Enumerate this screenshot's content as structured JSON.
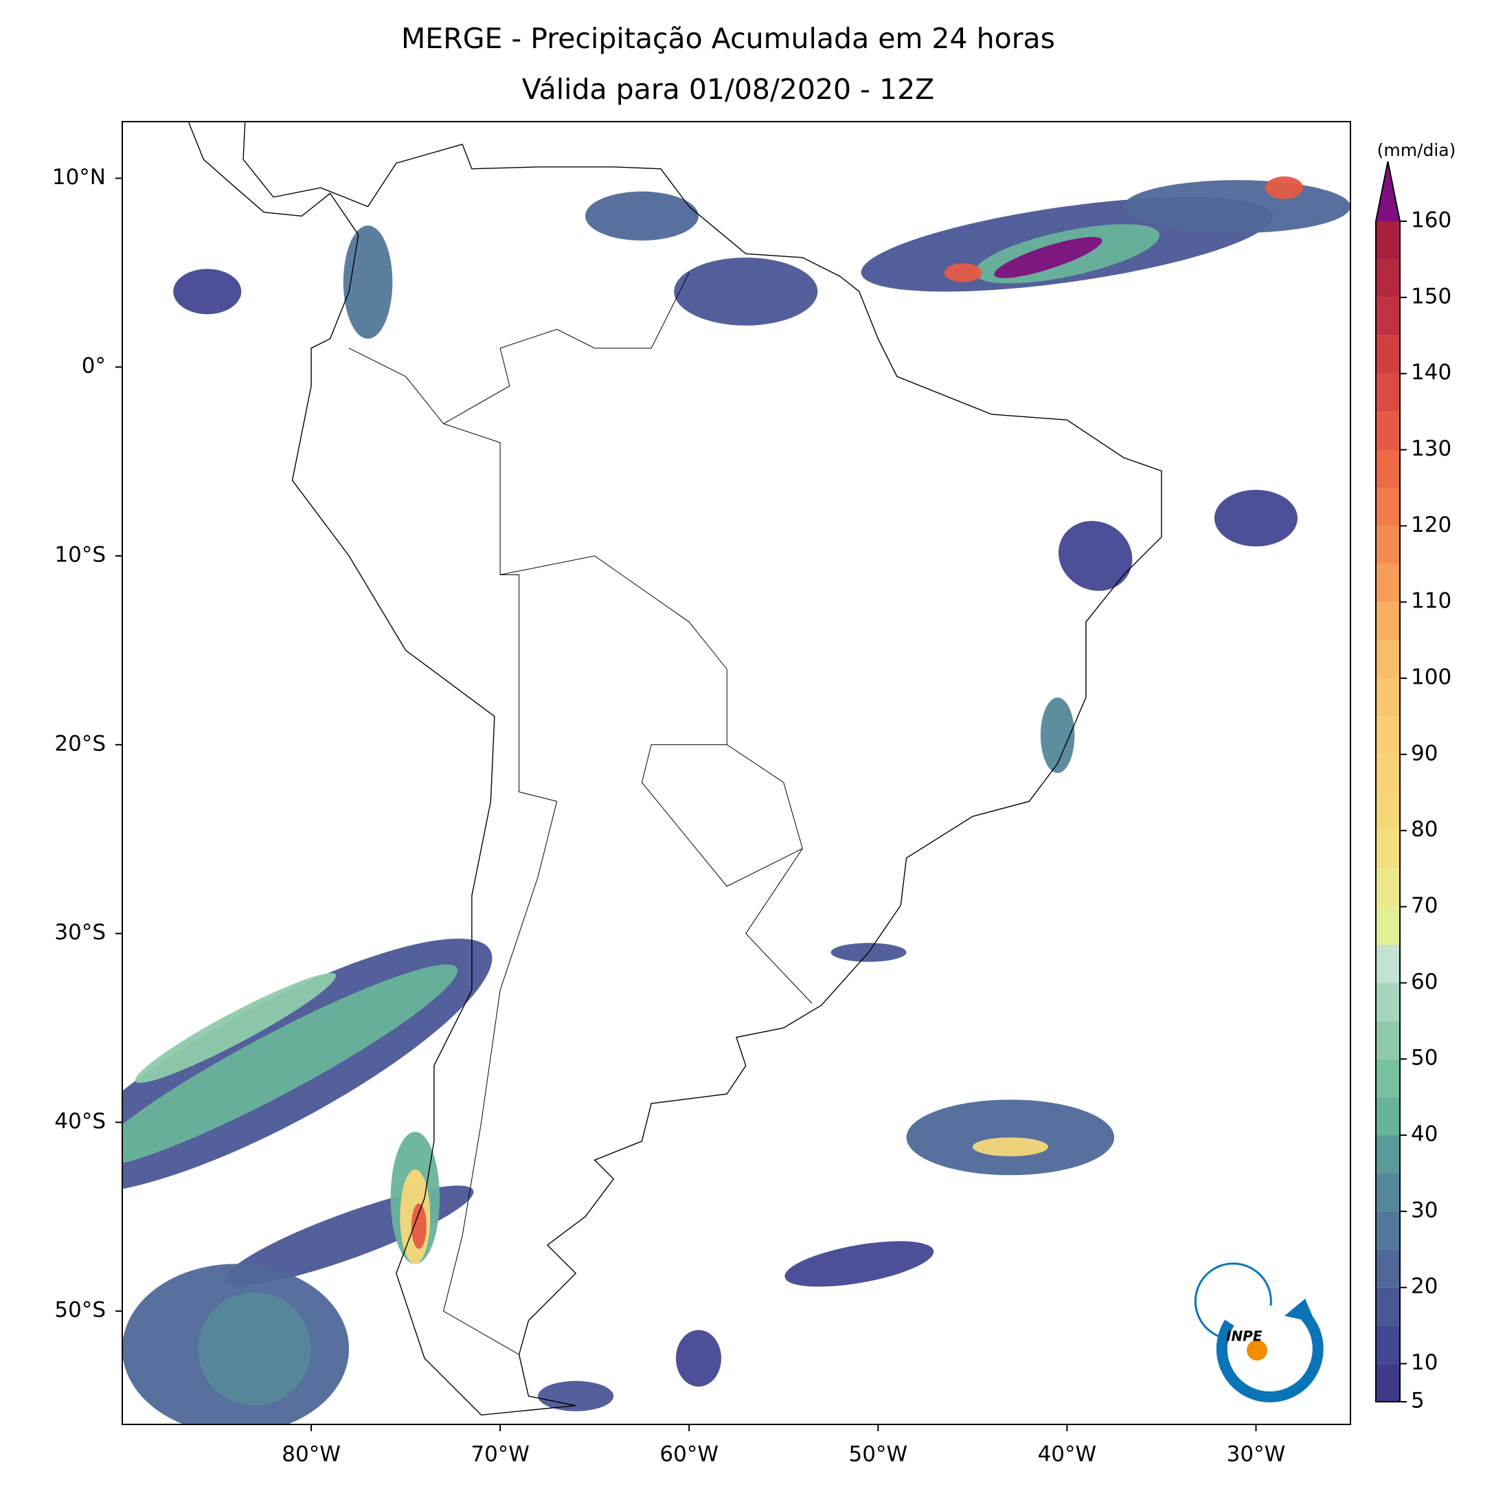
{
  "chart_data": {
    "type": "contour-map",
    "title": [
      "MERGE - Precipitação Acumulada em 24 horas",
      "Válida para 01/08/2020 - 12Z"
    ],
    "xlim": [
      -90,
      -25
    ],
    "ylim": [
      -56,
      13
    ],
    "xticks": [
      {
        "value": -80,
        "label": "80°W"
      },
      {
        "value": -70,
        "label": "70°W"
      },
      {
        "value": -60,
        "label": "60°W"
      },
      {
        "value": -50,
        "label": "50°W"
      },
      {
        "value": -40,
        "label": "40°W"
      },
      {
        "value": -30,
        "label": "30°W"
      }
    ],
    "yticks": [
      {
        "value": 10,
        "label": "10°N"
      },
      {
        "value": 0,
        "label": "0°"
      },
      {
        "value": -10,
        "label": "10°S"
      },
      {
        "value": -20,
        "label": "20°S"
      },
      {
        "value": -30,
        "label": "30°S"
      },
      {
        "value": -40,
        "label": "40°S"
      },
      {
        "value": -50,
        "label": "50°S"
      }
    ],
    "colorbar": {
      "label": "(mm/dia)",
      "levels": [
        5,
        10,
        15,
        20,
        25,
        30,
        35,
        40,
        45,
        50,
        55,
        60,
        65,
        70,
        75,
        80,
        85,
        90,
        95,
        100,
        105,
        110,
        115,
        120,
        125,
        130,
        135,
        140,
        145,
        150,
        155,
        160
      ],
      "ticks": [
        5,
        10,
        20,
        30,
        40,
        50,
        60,
        70,
        80,
        90,
        100,
        110,
        120,
        130,
        140,
        150,
        160
      ],
      "colors": [
        "#3f3b88",
        "#434792",
        "#4a5796",
        "#4f6898",
        "#527799",
        "#55879a",
        "#5b9a9a",
        "#68b39a",
        "#78c19f",
        "#8fcbab",
        "#a6d5bb",
        "#c2e2d2",
        "#e4ee96",
        "#ece88a",
        "#f2e080",
        "#f6d77a",
        "#f8d277",
        "#f9cd74",
        "#f9c670",
        "#f9be6a",
        "#f8ae60",
        "#f69d58",
        "#f48b50",
        "#f17b4b",
        "#ec6a46",
        "#e45a44",
        "#da4c43",
        "#cf3f42",
        "#c23341",
        "#b42840",
        "#a61f3f"
      ],
      "extend_color": "#7f0f7e"
    }
  },
  "logo": {
    "text": "INPE"
  }
}
